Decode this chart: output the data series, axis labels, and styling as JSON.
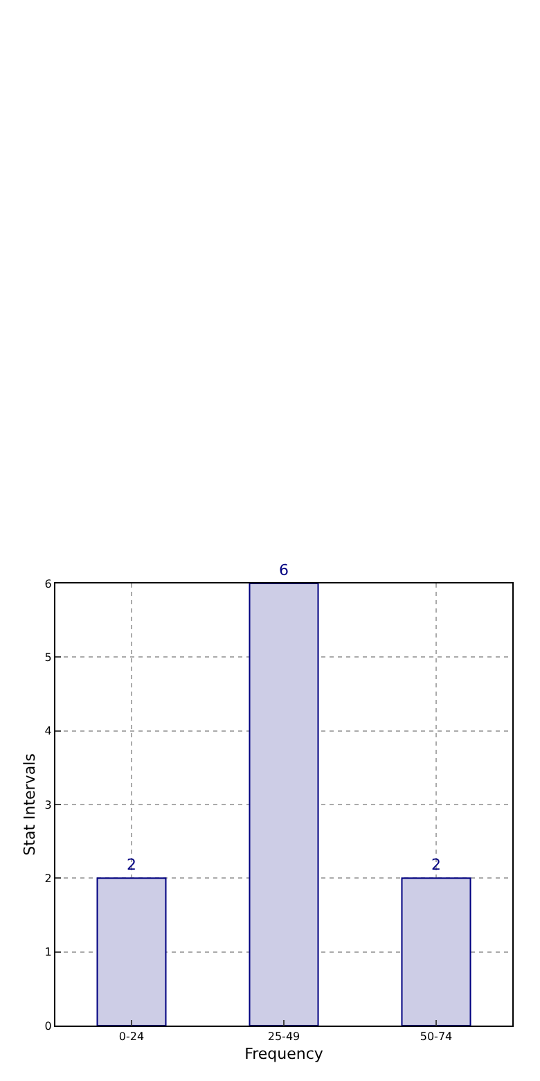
{
  "chart_data": {
    "type": "bar",
    "xlabel": "Frequency",
    "ylabel": "Stat Intervals",
    "categories": [
      "0-24",
      "25-49",
      "50-74"
    ],
    "values": [
      2,
      6,
      2
    ],
    "color": "#cdcde6",
    "ylim": [
      0,
      6
    ],
    "yticks": [
      0,
      1,
      2,
      3,
      4,
      5,
      6
    ],
    "grid": true,
    "data_labels": true
  }
}
